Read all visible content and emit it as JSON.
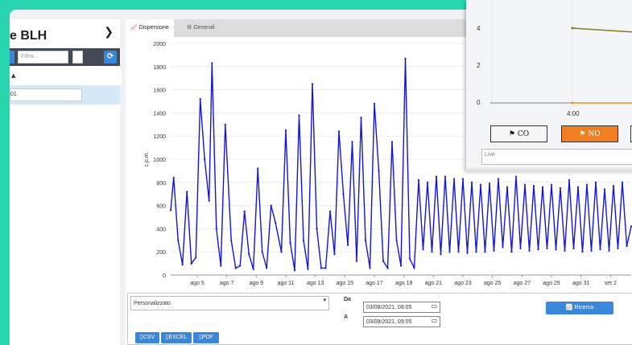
{
  "sidebar": {
    "title": "e BLH",
    "filter_placeholder": "Filtra...",
    "head_sort": "▲",
    "row_value": "01"
  },
  "tabs": [
    {
      "label": "Dispersione",
      "icon": "line-chart-icon"
    },
    {
      "label": "Generali",
      "icon": "gear-icon"
    }
  ],
  "form": {
    "range_value": "Personalizzato",
    "from_label": "Da",
    "to_label": "A",
    "from_value": "03/08/2021, 08:05",
    "to_value": "03/09/2021, 09:05",
    "search_label": "Ricerca",
    "export": [
      "CSV",
      "EXCEL",
      "PDF"
    ]
  },
  "overlay": {
    "time_label": "4:00",
    "buttons": [
      "CO",
      "NO"
    ],
    "input_value": "Live"
  },
  "chart_data": {
    "type": "line",
    "ylabel": "c.p.m.",
    "ylim": [
      0,
      2000
    ],
    "yticks": [
      0,
      200,
      400,
      600,
      800,
      1000,
      1200,
      1400,
      1600,
      1800,
      2000
    ],
    "xticks": [
      "ago 5",
      "ago 7",
      "ago 9",
      "ago 11",
      "ago 13",
      "ago 15",
      "ago 17",
      "ago 19",
      "ago 21",
      "ago 23",
      "ago 25",
      "ago 27",
      "ago 29",
      "ago 31",
      "set 2"
    ],
    "xrange_days": [
      3.2,
      34.4
    ],
    "color": "#1515d6",
    "x": [
      3.2,
      3.4,
      3.7,
      4.0,
      4.3,
      4.6,
      4.9,
      5.2,
      5.5,
      5.8,
      6.0,
      6.3,
      6.6,
      6.9,
      7.3,
      7.6,
      7.9,
      8.2,
      8.5,
      8.8,
      9.1,
      9.4,
      9.7,
      10.0,
      10.3,
      10.7,
      11.0,
      11.3,
      11.6,
      11.9,
      12.2,
      12.5,
      12.8,
      13.1,
      13.4,
      13.7,
      14.0,
      14.3,
      14.6,
      14.9,
      15.2,
      15.5,
      15.8,
      16.1,
      16.4,
      16.7,
      17.0,
      17.3,
      17.6,
      17.9,
      18.2,
      18.5,
      18.8,
      19.1,
      19.4,
      19.7,
      20.0,
      20.3,
      20.6,
      20.9,
      21.2,
      21.5,
      21.8,
      22.1,
      22.4,
      22.7,
      23.0,
      23.3,
      23.6,
      23.9,
      24.2,
      24.5,
      24.8,
      25.1,
      25.4,
      25.7,
      26.0,
      26.3,
      26.6,
      26.9,
      27.2,
      27.5,
      27.8,
      28.1,
      28.4,
      28.7,
      29.0,
      29.3,
      29.6,
      29.9,
      30.2,
      30.5,
      30.8,
      31.1,
      31.4,
      31.7,
      32.0,
      32.3,
      32.6,
      32.9,
      33.2,
      33.5,
      33.8,
      34.1,
      34.4
    ],
    "y": [
      560,
      840,
      300,
      90,
      720,
      100,
      150,
      1520,
      1000,
      640,
      1830,
      400,
      80,
      1300,
      300,
      60,
      80,
      550,
      180,
      50,
      920,
      200,
      60,
      600,
      450,
      200,
      1250,
      280,
      40,
      1380,
      300,
      50,
      1650,
      400,
      60,
      60,
      550,
      180,
      1240,
      700,
      260,
      1150,
      120,
      1360,
      300,
      60,
      1480,
      900,
      120,
      60,
      1150,
      300,
      80,
      1870,
      140,
      60,
      820,
      220,
      800,
      200,
      850,
      180,
      850,
      200,
      830,
      200,
      830,
      190,
      800,
      200,
      780,
      200,
      790,
      210,
      830,
      240,
      760,
      200,
      850,
      230,
      780,
      210,
      770,
      220,
      760,
      230,
      780,
      220,
      750,
      210,
      820,
      230,
      760,
      200,
      780,
      210,
      800,
      220,
      740,
      210,
      770,
      230,
      800,
      250,
      420
    ]
  }
}
